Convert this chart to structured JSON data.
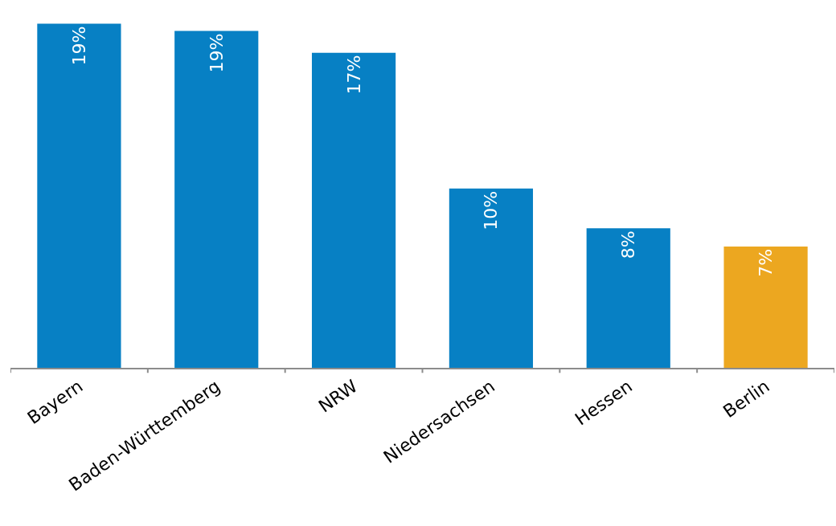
{
  "chart_data": {
    "type": "bar",
    "categories": [
      "Bayern",
      "Baden-Württemberg",
      "NRW",
      "Niedersachsen",
      "Hessen",
      "Berlin"
    ],
    "values": [
      19.0,
      18.6,
      17.4,
      9.9,
      7.7,
      6.7
    ],
    "value_labels": [
      "19%",
      "19%",
      "17%",
      "10%",
      "8%",
      "7%"
    ],
    "colors": [
      "#0780c4",
      "#0780c4",
      "#0780c4",
      "#0780c4",
      "#0780c4",
      "#eca720"
    ],
    "tick_labels": "x",
    "legend": false
  }
}
